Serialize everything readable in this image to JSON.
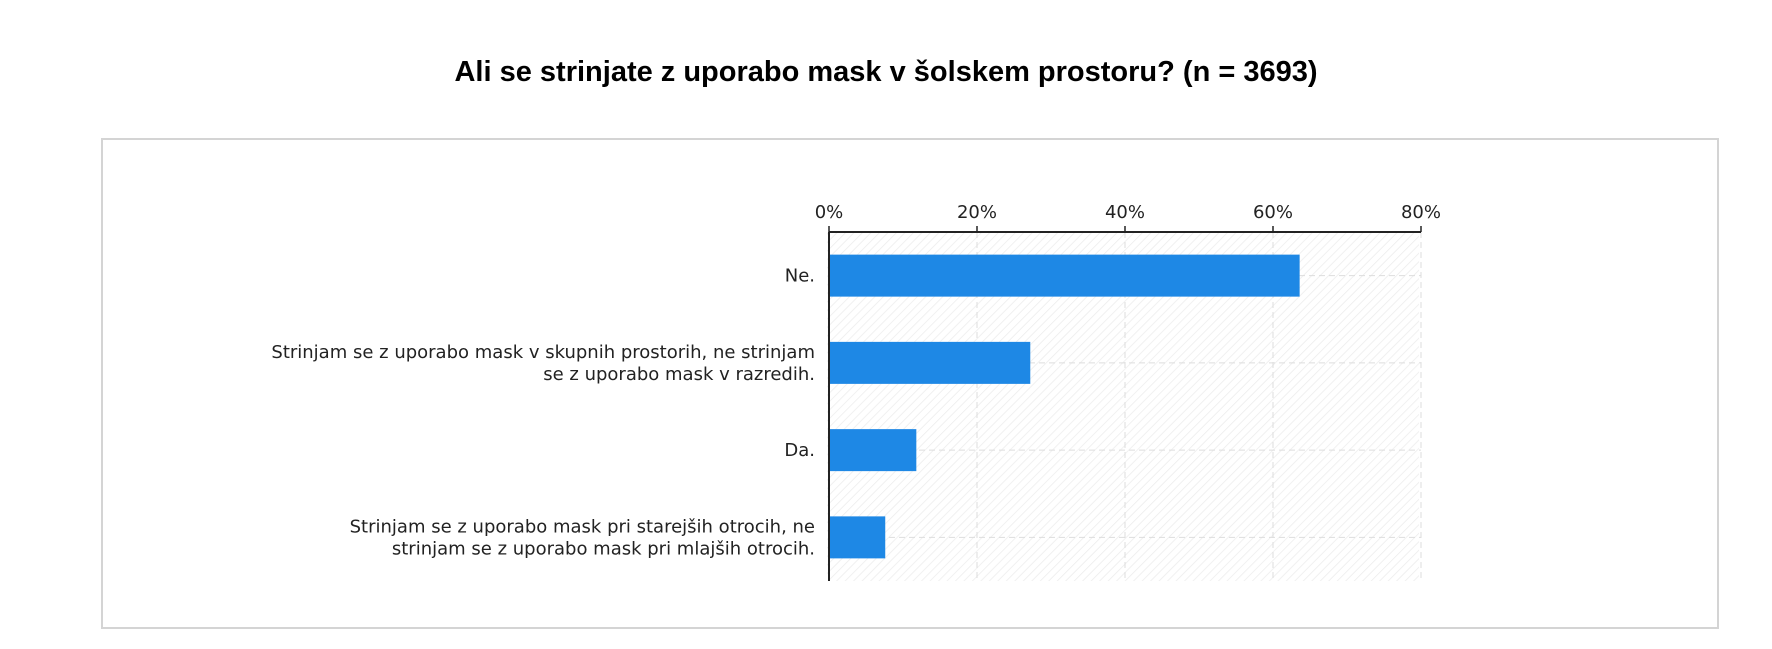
{
  "chart_data": {
    "type": "bar",
    "orientation": "horizontal",
    "title": "Ali se strinjate z uporabo mask v šolskem prostoru? (n = 3693)",
    "categories": [
      [
        "Ne."
      ],
      [
        "Strinjam se z uporabo mask v skupnih prostorih, ne strinjam",
        "se z uporabo mask v razredih."
      ],
      [
        "Da."
      ],
      [
        "Strinjam se z uporabo mask pri starejših otrocih, ne",
        "strinjam se z uporabo mask pri mlajših otrocih."
      ]
    ],
    "values": [
      63.6,
      27.2,
      11.8,
      7.6
    ],
    "xlim": [
      0,
      80
    ],
    "xticks": [
      0,
      20,
      40,
      60,
      80
    ],
    "xtick_labels": [
      "0%",
      "20%",
      "40%",
      "60%",
      "80%"
    ],
    "axis_position": "top",
    "grid": true,
    "bar_color": "#1e88e5"
  }
}
